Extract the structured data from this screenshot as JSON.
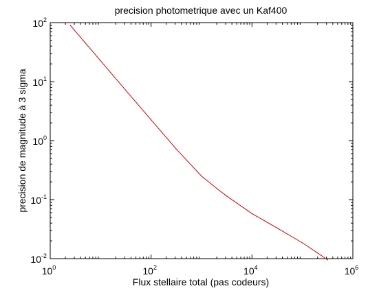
{
  "chart_data": {
    "type": "line",
    "title": "precision photometrique avec un Kaf400",
    "xlabel": "Flux stellaire total (pas codeurs)",
    "ylabel": "precision de magnitude à 3 sigma",
    "xscale": "log",
    "yscale": "log",
    "xlim": [
      1,
      1000000
    ],
    "ylim": [
      0.01,
      100
    ],
    "grid": false,
    "legend": "none",
    "x_ticks": [
      {
        "value": 1,
        "base": "10",
        "exp": "0"
      },
      {
        "value": 100,
        "base": "10",
        "exp": "2"
      },
      {
        "value": 10000,
        "base": "10",
        "exp": "4"
      },
      {
        "value": 1000000,
        "base": "10",
        "exp": "6"
      }
    ],
    "y_ticks": [
      {
        "value": 0.01,
        "base": "10",
        "exp": "-2"
      },
      {
        "value": 0.1,
        "base": "10",
        "exp": "-1"
      },
      {
        "value": 1,
        "base": "10",
        "exp": "0"
      },
      {
        "value": 10,
        "base": "10",
        "exp": "1"
      },
      {
        "value": 100,
        "base": "10",
        "exp": "2"
      }
    ],
    "series": [
      {
        "color": "#cc0000",
        "x": [
          2.5,
          10,
          31.6,
          100,
          316,
          1000,
          2000,
          3160,
          10000,
          31600,
          100000,
          200000,
          316000
        ],
        "y": [
          90,
          22.5,
          7.1,
          2.25,
          0.72,
          0.25,
          0.155,
          0.115,
          0.058,
          0.033,
          0.0185,
          0.0125,
          0.0095
        ]
      }
    ]
  }
}
